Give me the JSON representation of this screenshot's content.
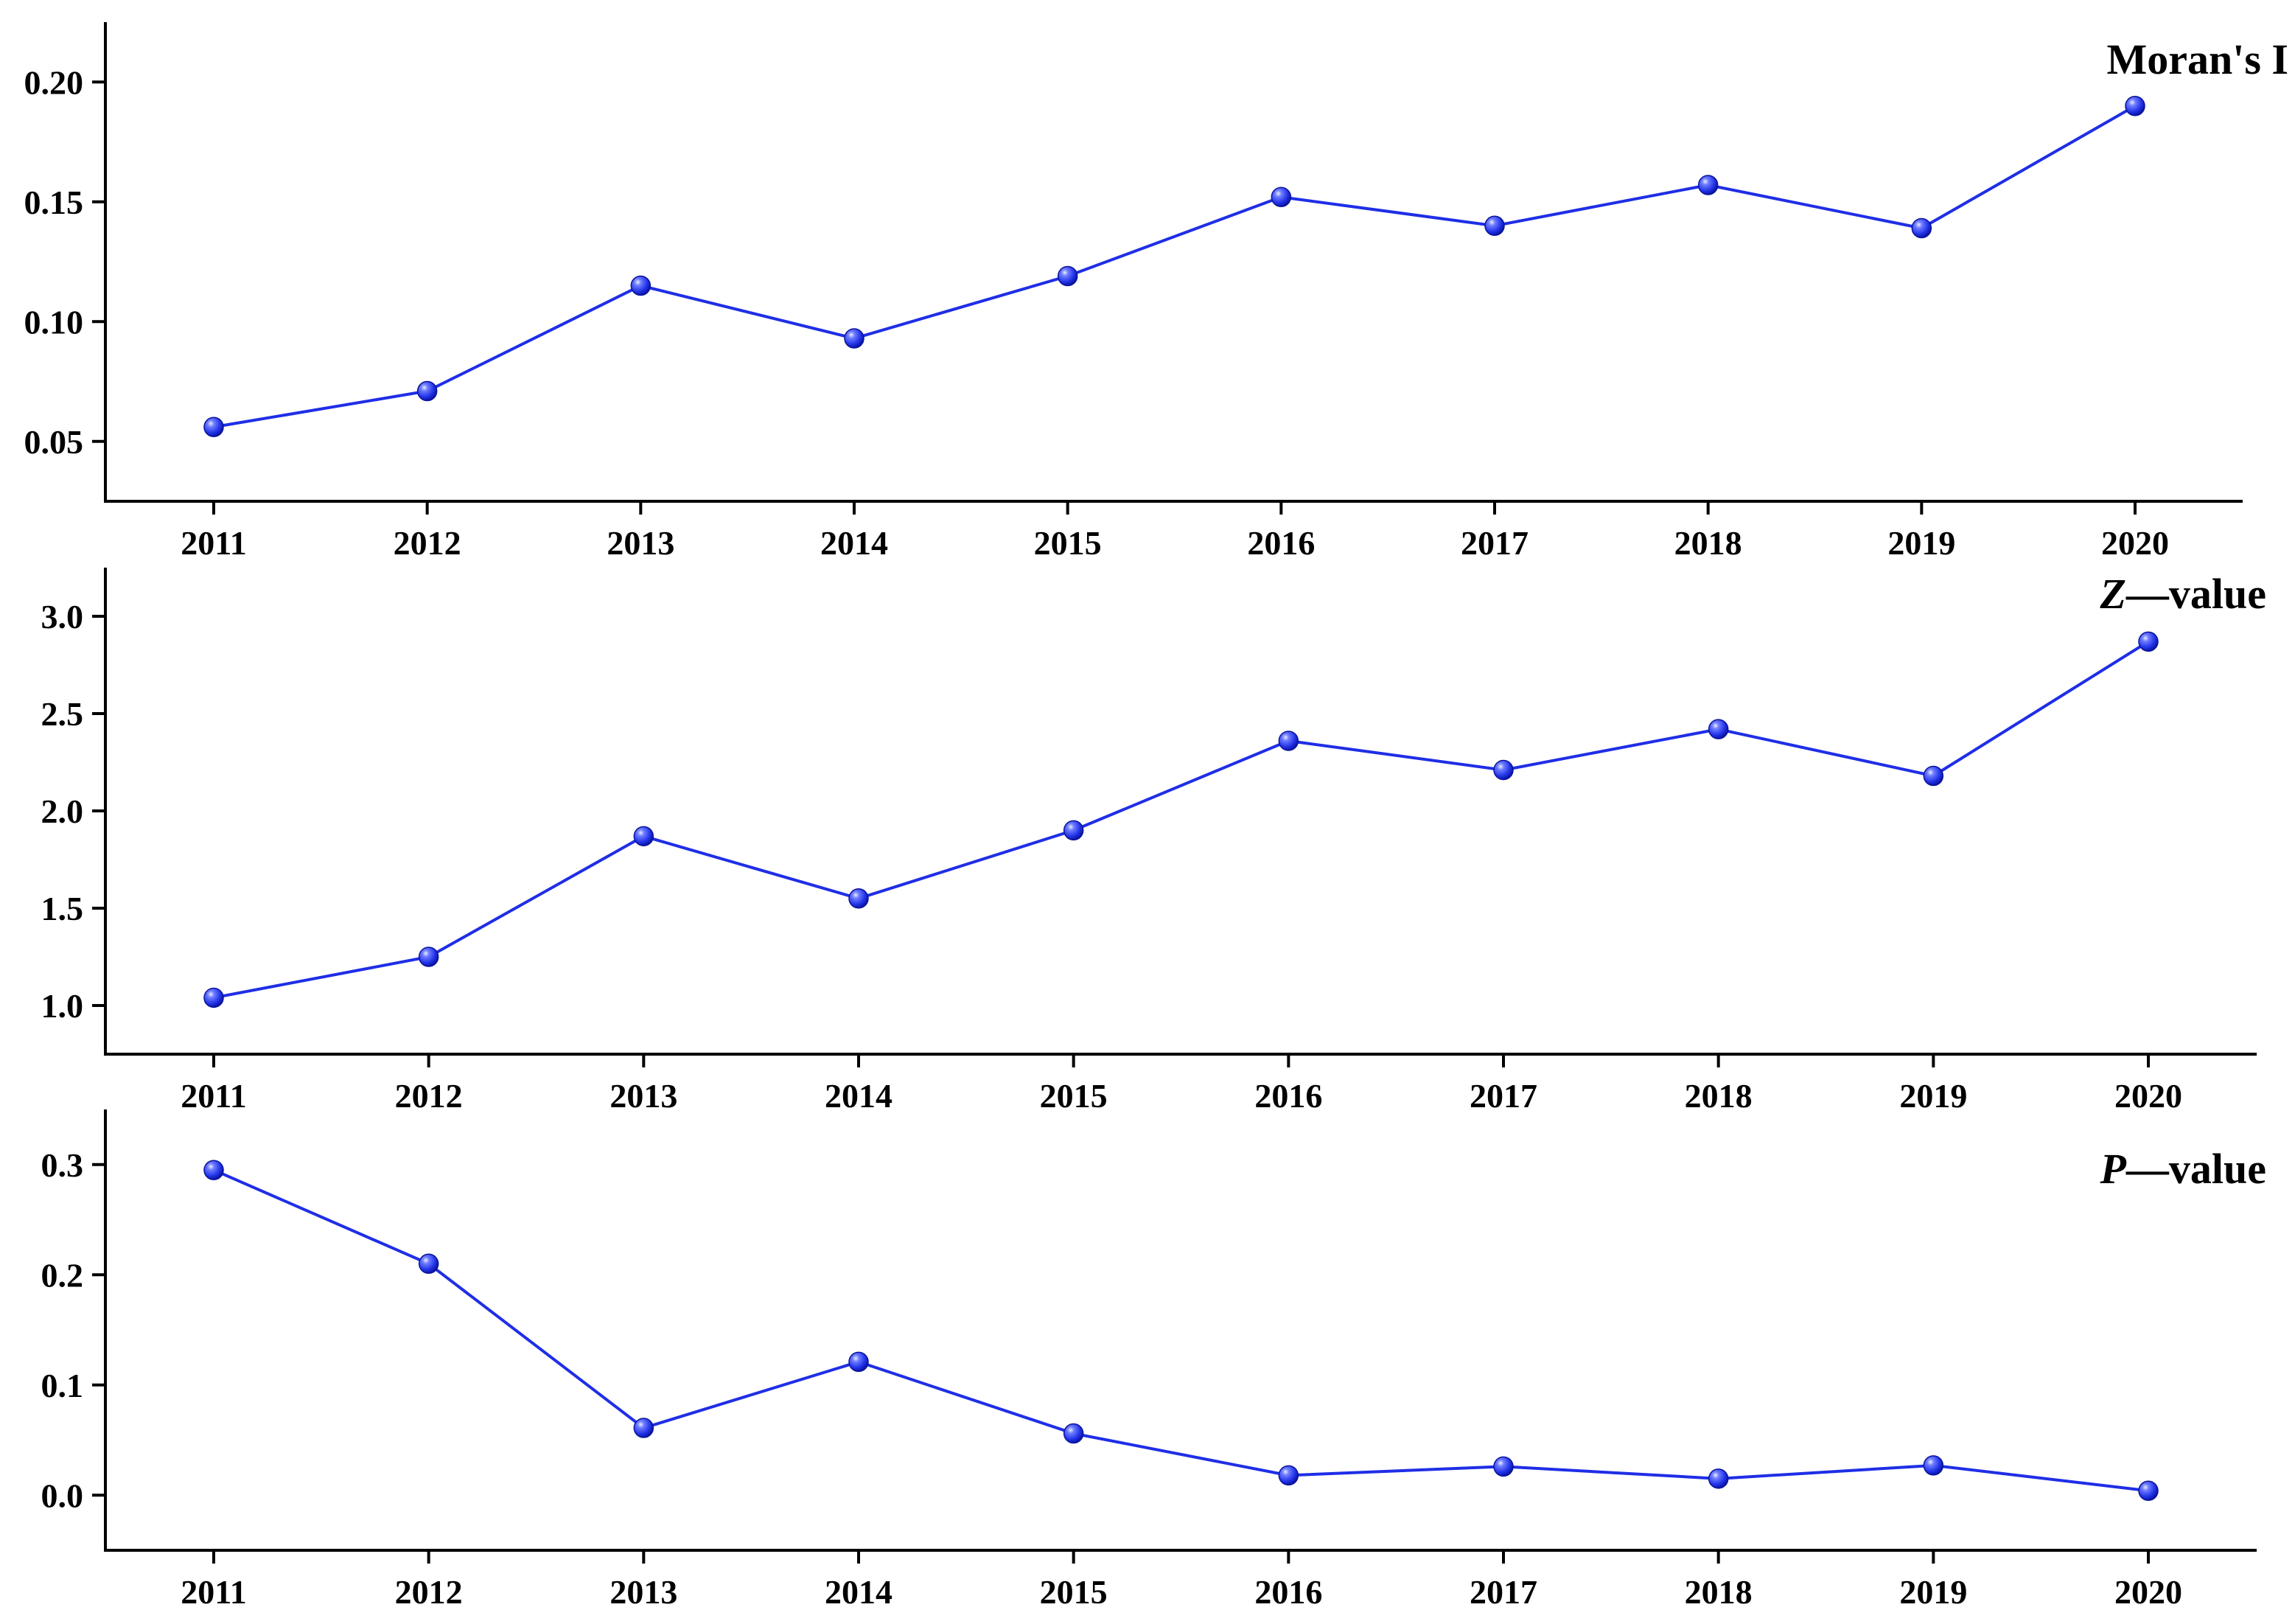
{
  "colors": {
    "series": "#1f2ee6",
    "marker": "#2b3bf0",
    "axis": "#000000"
  },
  "chart_data": [
    {
      "type": "line",
      "title": "",
      "label_parts": [
        {
          "text": "Moran's I",
          "italic": false
        }
      ],
      "x": [
        "2011",
        "2012",
        "2013",
        "2014",
        "2015",
        "2016",
        "2017",
        "2018",
        "2019",
        "2020"
      ],
      "values": [
        0.056,
        0.071,
        0.115,
        0.093,
        0.119,
        0.152,
        0.14,
        0.157,
        0.139,
        0.19
      ],
      "yticks": [
        "0.05",
        "0.10",
        "0.15",
        "0.20"
      ],
      "ylim": [
        0.025,
        0.225
      ],
      "grid": false,
      "legend": "none"
    },
    {
      "type": "line",
      "title": "",
      "label_parts": [
        {
          "text": "Z",
          "italic": true
        },
        {
          "text": "—value",
          "italic": false
        }
      ],
      "x": [
        "2011",
        "2012",
        "2013",
        "2014",
        "2015",
        "2016",
        "2017",
        "2018",
        "2019",
        "2020"
      ],
      "values": [
        1.04,
        1.25,
        1.87,
        1.55,
        1.9,
        2.36,
        2.21,
        2.42,
        2.18,
        2.87
      ],
      "yticks": [
        "1.0",
        "1.5",
        "2.0",
        "2.5",
        "3.0"
      ],
      "ylim": [
        0.75,
        3.25
      ],
      "grid": false,
      "legend": "none"
    },
    {
      "type": "line",
      "title": "",
      "label_parts": [
        {
          "text": "P",
          "italic": true
        },
        {
          "text": "—value",
          "italic": false
        }
      ],
      "x": [
        "2011",
        "2012",
        "2013",
        "2014",
        "2015",
        "2016",
        "2017",
        "2018",
        "2019",
        "2020"
      ],
      "values": [
        0.295,
        0.21,
        0.061,
        0.121,
        0.056,
        0.018,
        0.026,
        0.015,
        0.027,
        0.004
      ],
      "yticks": [
        "0.0",
        "0.1",
        "0.2",
        "0.3"
      ],
      "ylim": [
        -0.05,
        0.35
      ],
      "grid": false,
      "legend": "none"
    }
  ]
}
